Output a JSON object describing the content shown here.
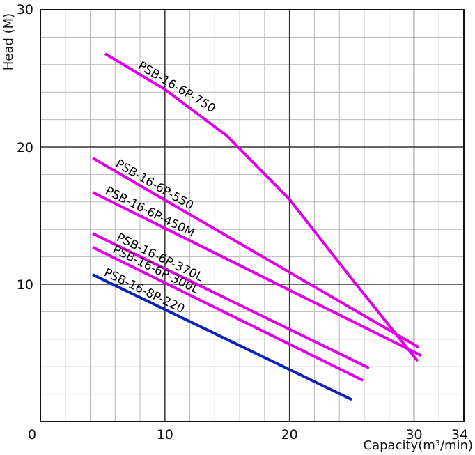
{
  "chart_data": {
    "type": "line",
    "title": "",
    "xlabel": "Capacity(m³/min)",
    "ylabel": "Head (M)",
    "xlim": [
      0,
      34
    ],
    "ylim": [
      0,
      30
    ],
    "x_ticks": [
      "0",
      "10",
      "20",
      "30",
      "34"
    ],
    "y_ticks": [
      "10",
      "20",
      "30"
    ],
    "grid": true,
    "colors": {
      "magenta": "#e100e6",
      "blue": "#0a22b4",
      "major_grid": "#333333",
      "minor_grid": "#b8b8b8"
    },
    "series": [
      {
        "name": "PSB-16-6P-750",
        "color": "#e100e6",
        "x": [
          5.2,
          10,
          15,
          20,
          25,
          30.3
        ],
        "y": [
          26.8,
          24.2,
          20.8,
          16.2,
          10.4,
          4.4
        ]
      },
      {
        "name": "PSB-16-6P-550",
        "color": "#e100e6",
        "x": [
          4.2,
          30.4
        ],
        "y": [
          19.2,
          5.4
        ]
      },
      {
        "name": "PSB-16-6P-450M",
        "color": "#e100e6",
        "x": [
          4.2,
          30.6
        ],
        "y": [
          16.7,
          4.8
        ]
      },
      {
        "name": "PSB-16-6P-370L",
        "color": "#e100e6",
        "x": [
          4.2,
          26.4
        ],
        "y": [
          13.7,
          3.9
        ]
      },
      {
        "name": "PSB-16-6P-300L",
        "color": "#e100e6",
        "x": [
          4.2,
          25.9
        ],
        "y": [
          12.7,
          3.0
        ]
      },
      {
        "name": "PSB-16-8P-220",
        "color": "#0a22b4",
        "x": [
          4.2,
          25.0
        ],
        "y": [
          10.7,
          1.6
        ]
      }
    ]
  }
}
